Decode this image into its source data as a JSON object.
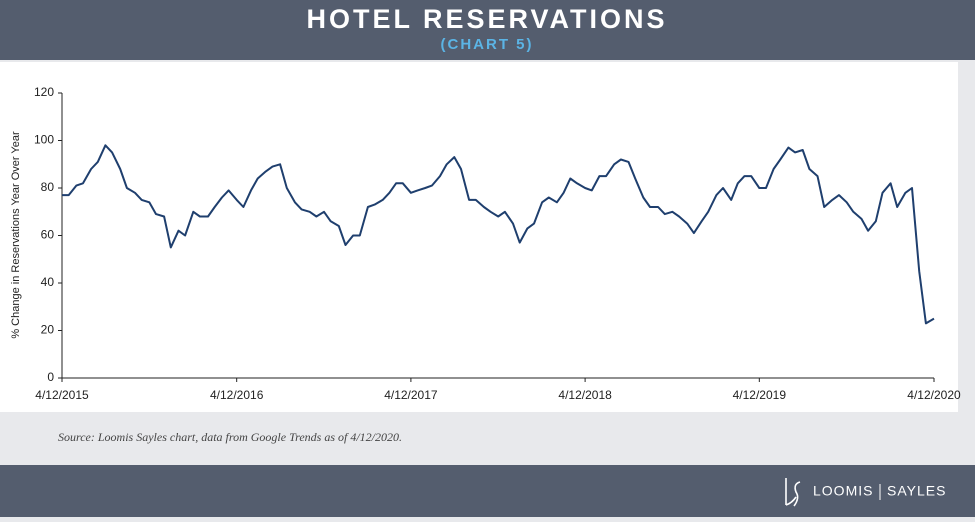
{
  "chart_data": {
    "type": "line",
    "title": "HOTEL RESERVATIONS",
    "subtitle": "(CHART 5)",
    "y_label": "% Change in Reservations Year Over Year",
    "source": "Source: Loomis Sayles chart, data from Google Trends as of 4/12/2020.",
    "color": "#1f3f6e",
    "x": [
      "2015-04-12",
      "2015-04-26",
      "2015-05-12",
      "2015-05-26",
      "2015-06-12",
      "2015-06-26",
      "2015-07-12",
      "2015-07-26",
      "2015-08-12",
      "2015-08-26",
      "2015-09-12",
      "2015-09-26",
      "2015-10-12",
      "2015-10-26",
      "2015-11-12",
      "2015-11-26",
      "2015-12-12",
      "2015-12-26",
      "2016-01-12",
      "2016-01-26",
      "2016-02-12",
      "2016-02-26",
      "2016-03-12",
      "2016-03-26",
      "2016-04-12",
      "2016-04-26",
      "2016-05-12",
      "2016-05-26",
      "2016-06-12",
      "2016-06-26",
      "2016-07-12",
      "2016-07-26",
      "2016-08-12",
      "2016-08-26",
      "2016-09-12",
      "2016-09-26",
      "2016-10-12",
      "2016-10-26",
      "2016-11-12",
      "2016-11-26",
      "2016-12-12",
      "2016-12-26",
      "2017-01-12",
      "2017-01-26",
      "2017-02-12",
      "2017-02-26",
      "2017-03-12",
      "2017-03-26",
      "2017-04-12",
      "2017-04-26",
      "2017-05-12",
      "2017-05-26",
      "2017-06-12",
      "2017-06-26",
      "2017-07-12",
      "2017-07-26",
      "2017-08-12",
      "2017-08-26",
      "2017-09-12",
      "2017-09-26",
      "2017-10-12",
      "2017-10-26",
      "2017-11-12",
      "2017-11-26",
      "2017-12-12",
      "2017-12-26",
      "2018-01-12",
      "2018-01-26",
      "2018-02-12",
      "2018-02-26",
      "2018-03-12",
      "2018-03-26",
      "2018-04-12",
      "2018-04-26",
      "2018-05-12",
      "2018-05-26",
      "2018-06-12",
      "2018-06-26",
      "2018-07-12",
      "2018-07-26",
      "2018-08-12",
      "2018-08-26",
      "2018-09-12",
      "2018-09-26",
      "2018-10-12",
      "2018-10-26",
      "2018-11-12",
      "2018-11-26",
      "2018-12-12",
      "2018-12-26",
      "2019-01-12",
      "2019-01-26",
      "2019-02-12",
      "2019-02-26",
      "2019-03-12",
      "2019-03-26",
      "2019-04-12",
      "2019-04-26",
      "2019-05-12",
      "2019-05-26",
      "2019-06-12",
      "2019-06-26",
      "2019-07-12",
      "2019-07-26",
      "2019-08-12",
      "2019-08-26",
      "2019-09-12",
      "2019-09-26",
      "2019-10-12",
      "2019-10-26",
      "2019-11-12",
      "2019-11-26",
      "2019-12-12",
      "2019-12-26",
      "2020-01-12",
      "2020-01-26",
      "2020-02-12",
      "2020-02-26",
      "2020-03-12",
      "2020-03-26",
      "2020-04-12"
    ],
    "values": [
      77,
      77,
      81,
      82,
      88,
      91,
      98,
      95,
      88,
      80,
      78,
      75,
      74,
      69,
      68,
      55,
      62,
      60,
      70,
      68,
      68,
      72,
      76,
      79,
      75,
      72,
      79,
      84,
      87,
      89,
      90,
      80,
      74,
      71,
      70,
      68,
      70,
      66,
      64,
      56,
      60,
      60,
      72,
      73,
      75,
      78,
      82,
      82,
      78,
      79,
      80,
      81,
      85,
      90,
      93,
      88,
      75,
      75,
      72,
      70,
      68,
      70,
      65,
      57,
      63,
      65,
      74,
      76,
      74,
      78,
      84,
      82,
      80,
      79,
      85,
      85,
      90,
      92,
      91,
      84,
      76,
      72,
      72,
      69,
      70,
      68,
      65,
      61,
      66,
      70,
      77,
      80,
      75,
      82,
      85,
      85,
      80,
      80,
      88,
      92,
      97,
      95,
      96,
      88,
      85,
      72,
      75,
      77,
      74,
      70,
      67,
      62,
      66,
      78,
      82,
      72,
      78,
      80,
      45,
      23,
      25
    ],
    "xlim": [
      "2015-04-12",
      "2020-04-12"
    ],
    "xticks": [
      {
        "value": "2015-04-12",
        "label": "4/12/2015"
      },
      {
        "value": "2016-04-12",
        "label": "4/12/2016"
      },
      {
        "value": "2017-04-12",
        "label": "4/12/2017"
      },
      {
        "value": "2018-04-12",
        "label": "4/12/2018"
      },
      {
        "value": "2019-04-12",
        "label": "4/12/2019"
      },
      {
        "value": "2020-04-12",
        "label": "4/12/2020"
      }
    ],
    "ylim": [
      0,
      120
    ],
    "yticks": [
      0,
      20,
      40,
      60,
      80,
      100,
      120
    ],
    "grid": false
  },
  "footer": {
    "brand": [
      "LOOMIS",
      "SAYLES"
    ]
  }
}
